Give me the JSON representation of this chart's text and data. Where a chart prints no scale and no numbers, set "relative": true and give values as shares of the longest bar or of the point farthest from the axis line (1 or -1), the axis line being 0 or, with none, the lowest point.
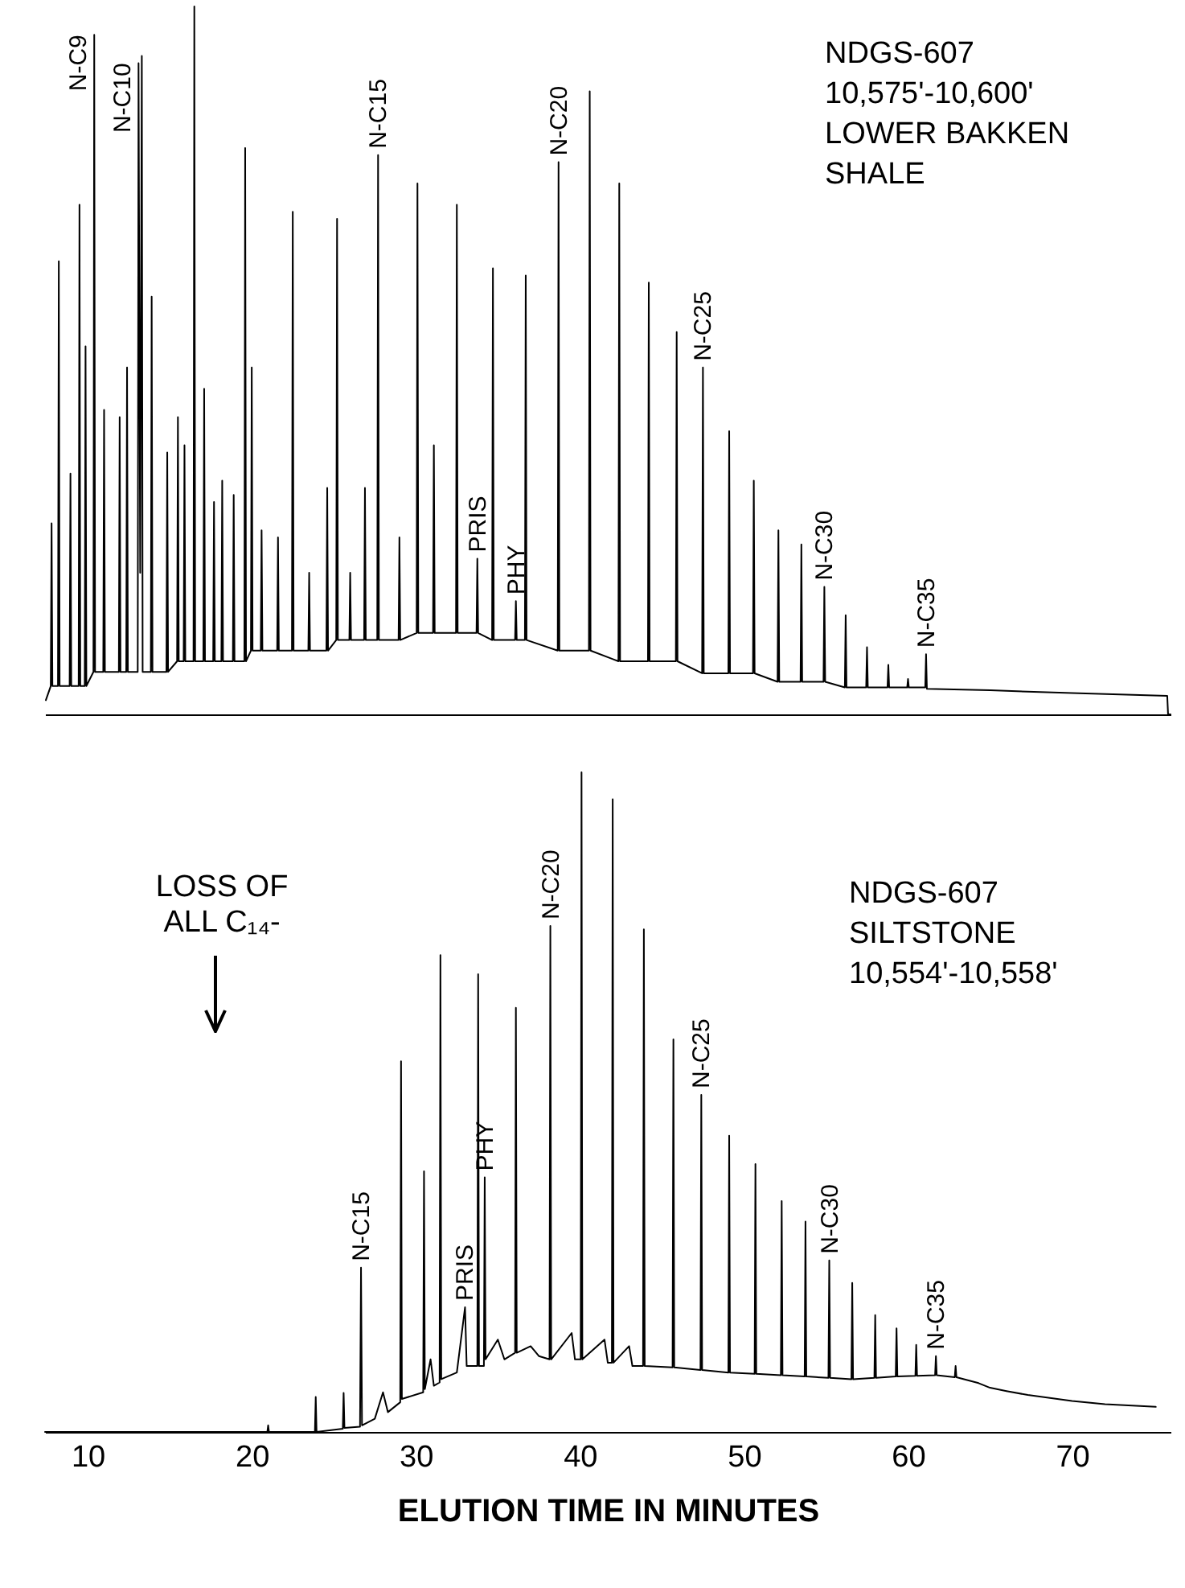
{
  "chart_data": [
    {
      "type": "line",
      "relative": true,
      "tick_labels": false,
      "xlim": [
        7.4,
        76
      ],
      "series": [
        {
          "color": "#000000",
          "x": [
            7.45,
            7.75,
            7.8,
            7.85,
            8.19,
            8.24,
            8.29,
            8.9,
            8.95,
            9.0,
            9.45,
            9.5,
            9.55,
            9.82,
            9.87,
            9.92,
            10.35,
            10.4,
            10.45,
            10.95,
            11.0,
            11.05,
            11.9,
            11.95,
            12.0,
            12.35,
            12.4,
            12.45,
            13.05,
            13.1,
            13.2,
            13.3,
            13.35,
            13.85,
            13.9,
            13.95,
            14.8,
            14.85,
            14.9,
            15.45,
            15.5,
            15.55,
            15.85,
            15.9,
            15.95,
            16.45,
            16.5,
            16.55,
            17.05,
            17.1,
            17.15,
            17.65,
            17.7,
            17.75,
            18.15,
            18.2,
            18.25,
            18.85,
            18.9,
            18.95,
            19.55,
            19.6,
            19.65,
            19.95,
            20.0,
            20.05,
            20.55,
            20.6,
            20.65,
            21.55,
            21.6,
            21.65,
            22.45,
            22.5,
            22.55,
            23.45,
            23.5,
            23.55,
            24.55,
            24.6,
            24.65,
            25.15,
            25.2,
            25.25,
            25.95,
            26.0,
            26.05,
            26.85,
            26.9,
            26.95,
            27.65,
            27.7,
            27.75,
            28.95,
            29.0,
            29.05,
            30.05,
            30.1,
            30.15,
            31.05,
            31.1,
            31.15,
            32.45,
            32.5,
            32.55,
            33.7,
            33.75,
            33.8,
            34.65,
            34.7,
            34.75,
            36.05,
            36.1,
            36.15,
            36.65,
            36.7,
            36.75,
            38.65,
            38.7,
            38.75,
            40.55,
            40.6,
            40.65,
            42.35,
            42.4,
            42.45,
            44.15,
            44.2,
            44.25,
            45.85,
            45.9,
            45.95,
            47.45,
            47.5,
            47.55,
            49.05,
            49.1,
            49.15,
            50.55,
            50.6,
            50.65,
            52.05,
            52.1,
            52.15,
            53.45,
            53.5,
            53.55,
            54.85,
            54.9,
            54.95,
            56.15,
            56.2,
            56.25,
            57.45,
            57.5,
            57.55,
            58.75,
            58.8,
            58.85,
            59.95,
            60.0,
            60.05,
            61.05,
            61.1,
            61.15,
            65,
            70,
            75.8,
            75.85,
            76
          ],
          "values": [
            0.02,
            0.04,
            0.27,
            0.04,
            0.04,
            0.64,
            0.04,
            0.04,
            0.34,
            0.04,
            0.04,
            0.72,
            0.04,
            0.04,
            0.52,
            0.04,
            0.06,
            0.96,
            0.06,
            0.06,
            0.43,
            0.06,
            0.06,
            0.42,
            0.06,
            0.06,
            0.49,
            0.06,
            0.06,
            0.92,
            0.2,
            0.93,
            0.06,
            0.06,
            0.59,
            0.06,
            0.06,
            0.37,
            0.06,
            0.075,
            0.42,
            0.075,
            0.075,
            0.38,
            0.075,
            0.075,
            1,
            0.075,
            0.075,
            0.46,
            0.075,
            0.075,
            0.3,
            0.075,
            0.075,
            0.33,
            0.075,
            0.075,
            0.31,
            0.075,
            0.075,
            0.8,
            0.075,
            0.09,
            0.49,
            0.09,
            0.09,
            0.26,
            0.09,
            0.09,
            0.25,
            0.09,
            0.09,
            0.71,
            0.09,
            0.09,
            0.2,
            0.09,
            0.09,
            0.32,
            0.09,
            0.105,
            0.7,
            0.105,
            0.105,
            0.2,
            0.105,
            0.105,
            0.32,
            0.105,
            0.105,
            0.79,
            0.105,
            0.105,
            0.25,
            0.105,
            0.115,
            0.75,
            0.115,
            0.115,
            0.38,
            0.115,
            0.115,
            0.72,
            0.115,
            0.115,
            0.22,
            0.115,
            0.105,
            0.63,
            0.105,
            0.105,
            0.16,
            0.105,
            0.105,
            0.62,
            0.105,
            0.09,
            0.78,
            0.09,
            0.09,
            0.88,
            0.09,
            0.075,
            0.75,
            0.075,
            0.075,
            0.61,
            0.075,
            0.075,
            0.54,
            0.075,
            0.058,
            0.49,
            0.058,
            0.058,
            0.4,
            0.058,
            0.058,
            0.33,
            0.058,
            0.046,
            0.26,
            0.046,
            0.046,
            0.24,
            0.046,
            0.046,
            0.18,
            0.046,
            0.038,
            0.14,
            0.038,
            0.038,
            0.095,
            0.038,
            0.038,
            0.07,
            0.038,
            0.038,
            0.05,
            0.038,
            0.038,
            0.085,
            0.036,
            0.034,
            0.03,
            0.026,
            0,
            0
          ]
        }
      ],
      "annotations": [
        "NDGS-607\n10,575'-10,600'\nLOWER BAKKEN\nSHALE",
        {
          "text": "N-C9",
          "x": 10.4,
          "y": 0.96
        },
        {
          "text": "N-C10",
          "x": 13.1,
          "y": 0.92
        },
        {
          "text": "N-C15",
          "x": 27.7,
          "y": 0.79
        },
        {
          "text": "PRIS",
          "x": 33.75,
          "y": 0.22
        },
        {
          "text": "PHY",
          "x": 36.1,
          "y": 0.16
        },
        {
          "text": "N-C20",
          "x": 38.7,
          "y": 0.78
        },
        {
          "text": "N-C25",
          "x": 47.5,
          "y": 0.49
        },
        {
          "text": "N-C30",
          "x": 54.9,
          "y": 0.18
        },
        {
          "text": "N-C35",
          "x": 61.1,
          "y": 0.085
        }
      ]
    },
    {
      "type": "line",
      "relative": true,
      "tick_labels": "x",
      "xlim": [
        7.4,
        76
      ],
      "xticks": [
        10,
        20,
        30,
        40,
        50,
        60,
        70
      ],
      "xlabel": "ELUTION TIME IN MINUTES",
      "series": [
        {
          "color": "#000000",
          "x": [
            7.4,
            20.95,
            21.0,
            21.05,
            23.85,
            23.9,
            23.95,
            25.55,
            25.6,
            25.65,
            26.6,
            26.66,
            26.72,
            27.5,
            28.0,
            28.3,
            29.05,
            29.1,
            29.15,
            30.45,
            30.5,
            30.55,
            30.9,
            31.1,
            31.45,
            31.5,
            31.55,
            32.5,
            33.0,
            33.1,
            33.75,
            33.8,
            33.85,
            34.15,
            34.2,
            34.25,
            35.0,
            35.4,
            36.05,
            36.1,
            36.15,
            37.0,
            37.5,
            38.15,
            38.2,
            38.25,
            39.5,
            39.7,
            40.05,
            40.1,
            40.15,
            41.5,
            41.7,
            41.95,
            42.0,
            42.05,
            43.0,
            43.2,
            43.85,
            43.9,
            43.95,
            45.65,
            45.7,
            45.75,
            47.35,
            47.4,
            47.45,
            49.05,
            49.1,
            49.15,
            50.65,
            50.7,
            50.75,
            52.25,
            52.3,
            52.35,
            53.7,
            53.75,
            53.8,
            55.15,
            55.2,
            55.25,
            56.55,
            56.6,
            56.65,
            57.95,
            58.0,
            58.05,
            59.25,
            59.3,
            59.35,
            60.45,
            60.5,
            60.55,
            61.65,
            61.7,
            61.75,
            62.85,
            62.9,
            62.95,
            64.3,
            65,
            66,
            67.3,
            70,
            72,
            75.1
          ],
          "values": [
            0,
            0,
            0.01,
            0,
            0,
            0.053,
            0,
            0.005,
            0.059,
            0.006,
            0.008,
            0.249,
            0.01,
            0.02,
            0.06,
            0.03,
            0.045,
            0.562,
            0.05,
            0.06,
            0.395,
            0.065,
            0.11,
            0.07,
            0.075,
            0.723,
            0.08,
            0.09,
            0.189,
            0.1,
            0.1,
            0.694,
            0.1,
            0.1,
            0.386,
            0.11,
            0.14,
            0.11,
            0.12,
            0.643,
            0.12,
            0.13,
            0.115,
            0.11,
            0.767,
            0.11,
            0.15,
            0.11,
            0.11,
            1,
            0.11,
            0.14,
            0.105,
            0.105,
            0.959,
            0.105,
            0.13,
            0.1,
            0.1,
            0.762,
            0.1,
            0.098,
            0.595,
            0.098,
            0.094,
            0.511,
            0.094,
            0.09,
            0.449,
            0.09,
            0.088,
            0.406,
            0.088,
            0.086,
            0.35,
            0.086,
            0.084,
            0.319,
            0.084,
            0.082,
            0.26,
            0.082,
            0.08,
            0.226,
            0.08,
            0.082,
            0.177,
            0.082,
            0.084,
            0.157,
            0.084,
            0.085,
            0.132,
            0.085,
            0.086,
            0.115,
            0.086,
            0.083,
            0.1,
            0.083,
            0.074,
            0.067,
            0.062,
            0.056,
            0.047,
            0.042,
            0.038
          ]
        }
      ],
      "annotations": [
        "NDGS-607\nSILTSTONE\n10,554'-10,558'",
        "LOSS OF\nALL C₁₄-",
        {
          "text": "N-C15",
          "x": 26.66,
          "y": 0.249
        },
        {
          "text": "PRIS",
          "x": 33.0,
          "y": 0.189
        },
        {
          "text": "PHY",
          "x": 34.2,
          "y": 0.386
        },
        {
          "text": "N-C20",
          "x": 38.2,
          "y": 0.767
        },
        {
          "text": "N-C25",
          "x": 47.4,
          "y": 0.511
        },
        {
          "text": "N-C30",
          "x": 55.2,
          "y": 0.26
        },
        {
          "text": "N-C35",
          "x": 61.7,
          "y": 0.115
        }
      ]
    }
  ]
}
